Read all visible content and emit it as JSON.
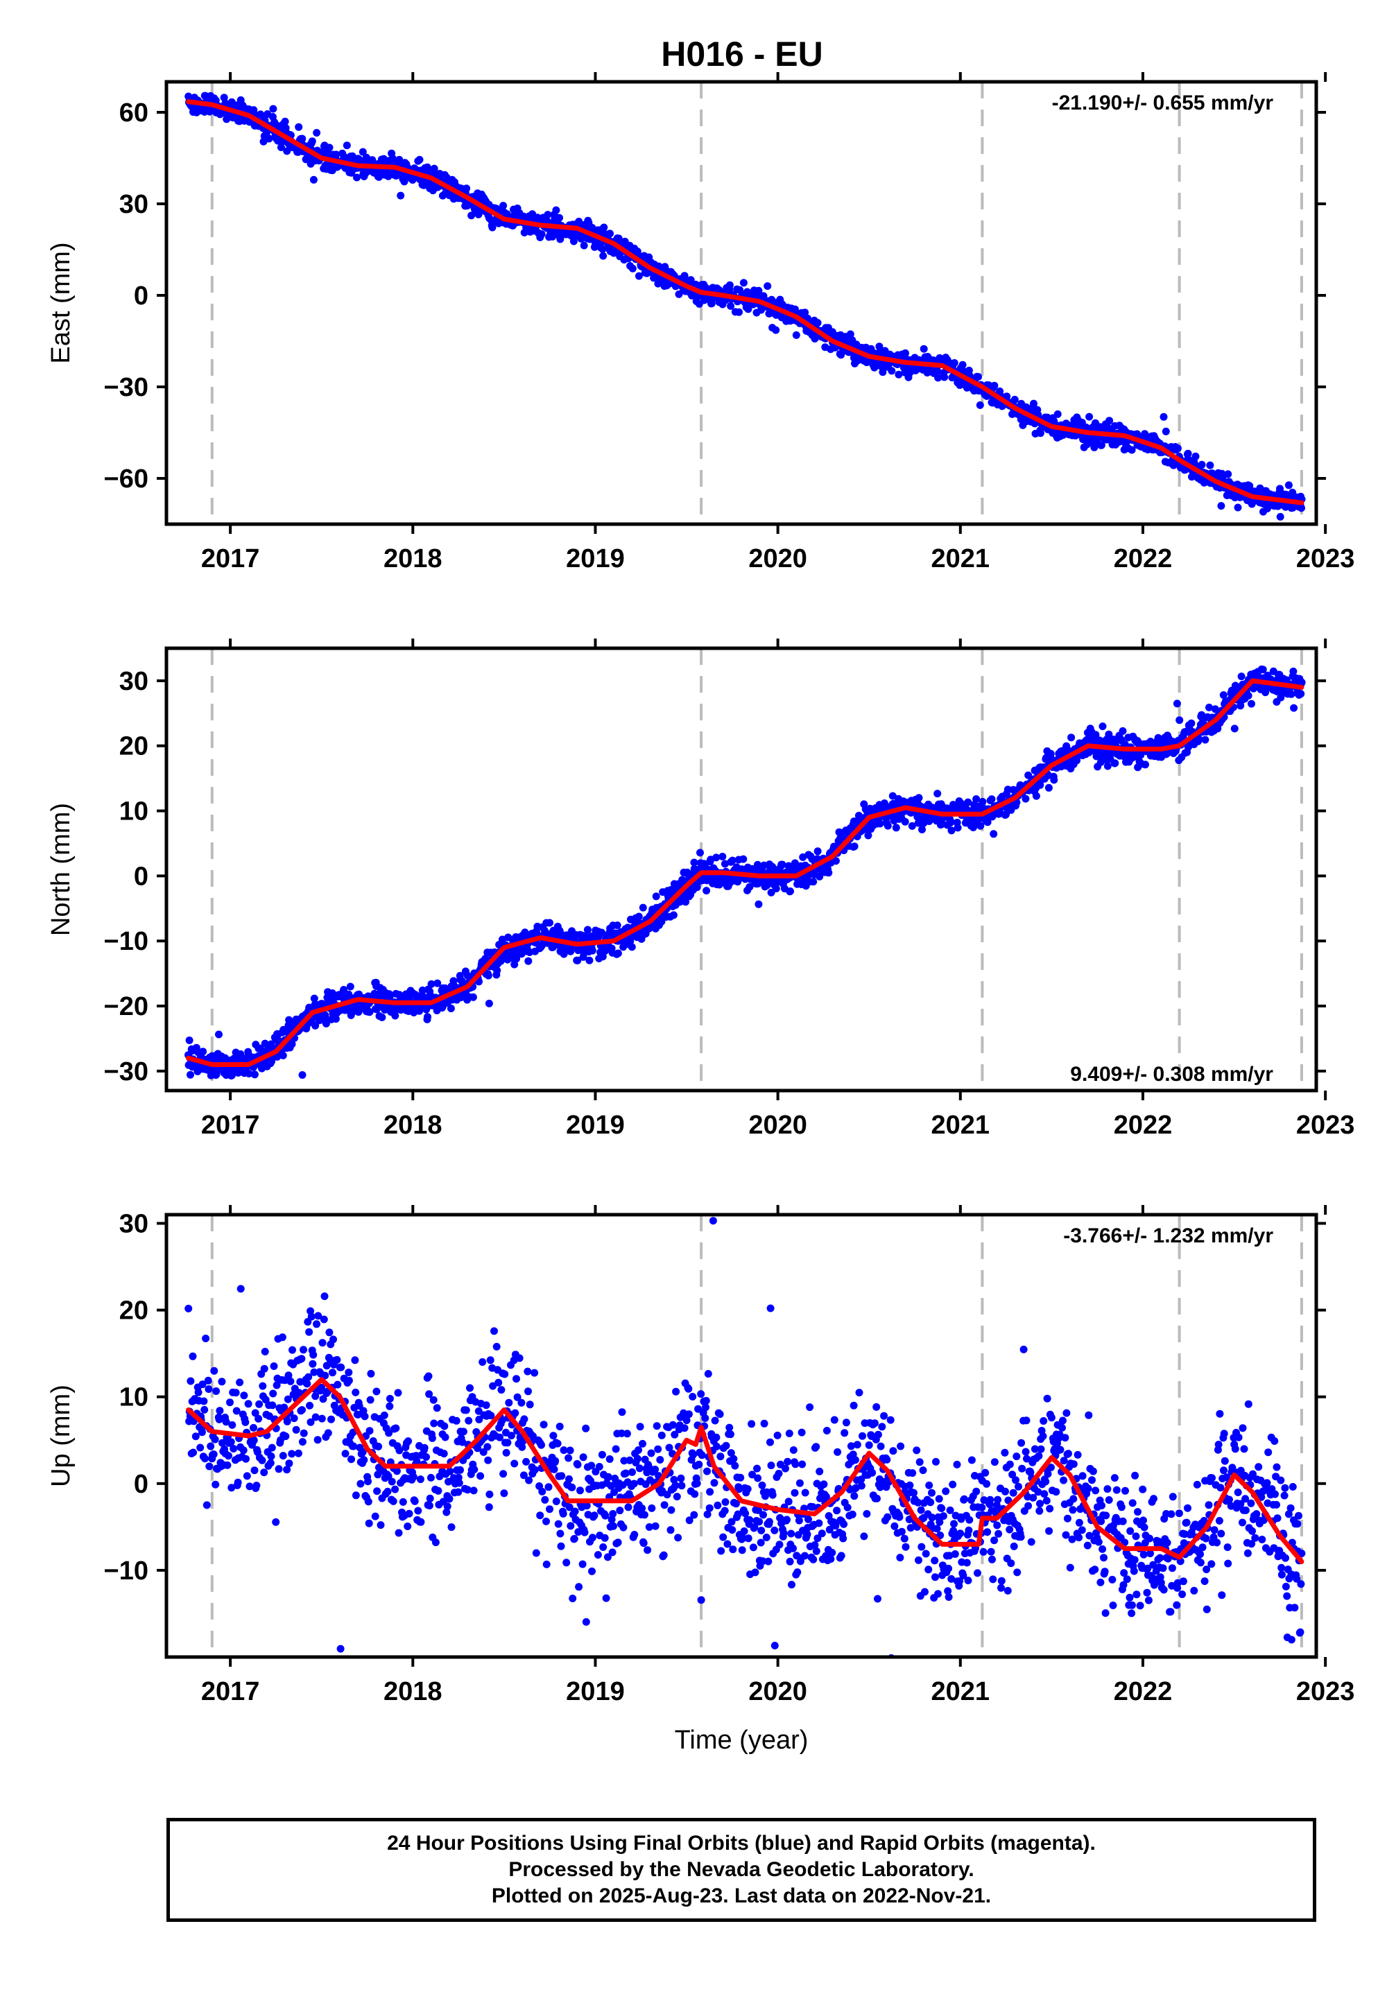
{
  "title": "H016 - EU",
  "footer": {
    "line1": "24 Hour Positions Using Final Orbits (blue) and Rapid Orbits (magenta).",
    "line2": "Processed by the Nevada Geodetic Laboratory.",
    "line3": "Plotted on 2025-Aug-23. Last data on 2022-Nov-21."
  },
  "colors": {
    "points": "#0000ff",
    "model": "#ff0000",
    "breaks": "#bbbbbb",
    "frame": "#000000"
  },
  "chart_data": [
    {
      "type": "scatter",
      "ylabel": "East (mm)",
      "xlabel": "",
      "xlim": [
        2016.65,
        2022.95
      ],
      "ylim": [
        -75,
        70
      ],
      "xticks": [
        2017,
        2018,
        2019,
        2020,
        2021,
        2022,
        2023
      ],
      "yticks": [
        60,
        30,
        0,
        -30,
        -60
      ],
      "ytick_labels": [
        "60",
        "30",
        "0",
        "−30",
        "−60"
      ],
      "rate": "-21.190+/- 0.655 mm/yr",
      "rate_position": "top-right",
      "breaks": [
        2016.9,
        2019.58,
        2021.12,
        2022.2,
        2022.87
      ],
      "model": {
        "x": [
          2016.77,
          2016.9,
          2017.1,
          2017.3,
          2017.5,
          2017.7,
          2017.9,
          2018.1,
          2018.3,
          2018.5,
          2018.7,
          2018.9,
          2019.1,
          2019.3,
          2019.5,
          2019.58,
          2019.7,
          2019.9,
          2020.1,
          2020.3,
          2020.5,
          2020.7,
          2020.9,
          2021.12,
          2021.3,
          2021.5,
          2021.7,
          2021.9,
          2022.1,
          2022.2,
          2022.4,
          2022.6,
          2022.87
        ],
        "y": [
          63.5,
          62.5,
          59,
          52,
          45,
          42.5,
          42,
          38.5,
          32,
          25,
          23,
          22,
          17,
          9,
          3,
          1,
          0,
          -2,
          -7,
          -15,
          -20,
          -22,
          -23,
          -30,
          -37,
          -43,
          -45,
          -46,
          -50,
          -54,
          -61,
          -66,
          -68
        ]
      },
      "points": {
        "count": 2150,
        "scatter_mm": 1.8,
        "outlier_rate": 0.01
      }
    },
    {
      "type": "scatter",
      "ylabel": "North (mm)",
      "xlabel": "",
      "xlim": [
        2016.65,
        2022.95
      ],
      "ylim": [
        -33,
        35
      ],
      "xticks": [
        2017,
        2018,
        2019,
        2020,
        2021,
        2022,
        2023
      ],
      "yticks": [
        30,
        20,
        10,
        0,
        -10,
        -20,
        -30
      ],
      "ytick_labels": [
        "30",
        "20",
        "10",
        "0",
        "−10",
        "−20",
        "−30"
      ],
      "rate": "9.409+/- 0.308 mm/yr",
      "rate_position": "bottom-right",
      "breaks": [
        2016.9,
        2019.58,
        2021.12,
        2022.2,
        2022.87
      ],
      "model": {
        "x": [
          2016.77,
          2016.9,
          2017.1,
          2017.25,
          2017.45,
          2017.7,
          2017.9,
          2018.1,
          2018.3,
          2018.5,
          2018.7,
          2018.9,
          2019.1,
          2019.3,
          2019.5,
          2019.58,
          2019.7,
          2019.9,
          2020.1,
          2020.3,
          2020.5,
          2020.7,
          2020.9,
          2021.12,
          2021.3,
          2021.5,
          2021.7,
          2021.9,
          2022.1,
          2022.2,
          2022.4,
          2022.6,
          2022.87
        ],
        "y": [
          -28,
          -29,
          -29,
          -27,
          -21,
          -19,
          -19.5,
          -19.5,
          -17,
          -11,
          -9.5,
          -10.5,
          -10,
          -7,
          -1.5,
          0.5,
          0.5,
          0,
          0,
          3,
          9,
          10.5,
          9.5,
          9.5,
          12,
          17,
          20,
          19.5,
          19.5,
          20,
          24,
          30,
          29
        ]
      },
      "points": {
        "count": 2150,
        "scatter_mm": 1.1,
        "outlier_rate": 0.01
      }
    },
    {
      "type": "scatter",
      "ylabel": "Up (mm)",
      "xlabel": "Time (year)",
      "xlim": [
        2016.65,
        2022.95
      ],
      "ylim": [
        -20,
        31
      ],
      "xticks": [
        2017,
        2018,
        2019,
        2020,
        2021,
        2022,
        2023
      ],
      "yticks": [
        30,
        20,
        10,
        0,
        -10
      ],
      "ytick_labels": [
        "30",
        "20",
        "10",
        "0",
        "−10"
      ],
      "rate": "-3.766+/- 1.232 mm/yr",
      "rate_position": "top-right",
      "breaks": [
        2016.9,
        2019.58,
        2021.12,
        2022.2,
        2022.87
      ],
      "model": {
        "x": [
          2016.77,
          2016.9,
          2017.1,
          2017.2,
          2017.35,
          2017.5,
          2017.6,
          2017.75,
          2017.85,
          2018.0,
          2018.2,
          2018.35,
          2018.5,
          2018.6,
          2018.75,
          2018.85,
          2019.0,
          2019.2,
          2019.35,
          2019.5,
          2019.55,
          2019.58,
          2019.65,
          2019.8,
          2020.0,
          2020.2,
          2020.35,
          2020.5,
          2020.6,
          2020.75,
          2020.9,
          2021.1,
          2021.12,
          2021.2,
          2021.35,
          2021.5,
          2021.6,
          2021.75,
          2021.9,
          2022.1,
          2022.2,
          2022.35,
          2022.5,
          2022.6,
          2022.75,
          2022.87
        ],
        "y": [
          8.5,
          6,
          5.5,
          6,
          9,
          12,
          10,
          4,
          2,
          2,
          2,
          5,
          8.5,
          6,
          1,
          -2,
          -2,
          -2,
          0,
          5,
          4.5,
          6.5,
          2,
          -2,
          -3,
          -3.5,
          -1,
          3.5,
          1.5,
          -4,
          -7,
          -7,
          -4,
          -4,
          -1,
          3,
          1,
          -5,
          -7.5,
          -7.5,
          -8.5,
          -5,
          1,
          -1,
          -6,
          -9
        ]
      },
      "points": {
        "count": 1800,
        "scatter_mm": 4.0,
        "outlier_rate": 0.02
      }
    }
  ]
}
